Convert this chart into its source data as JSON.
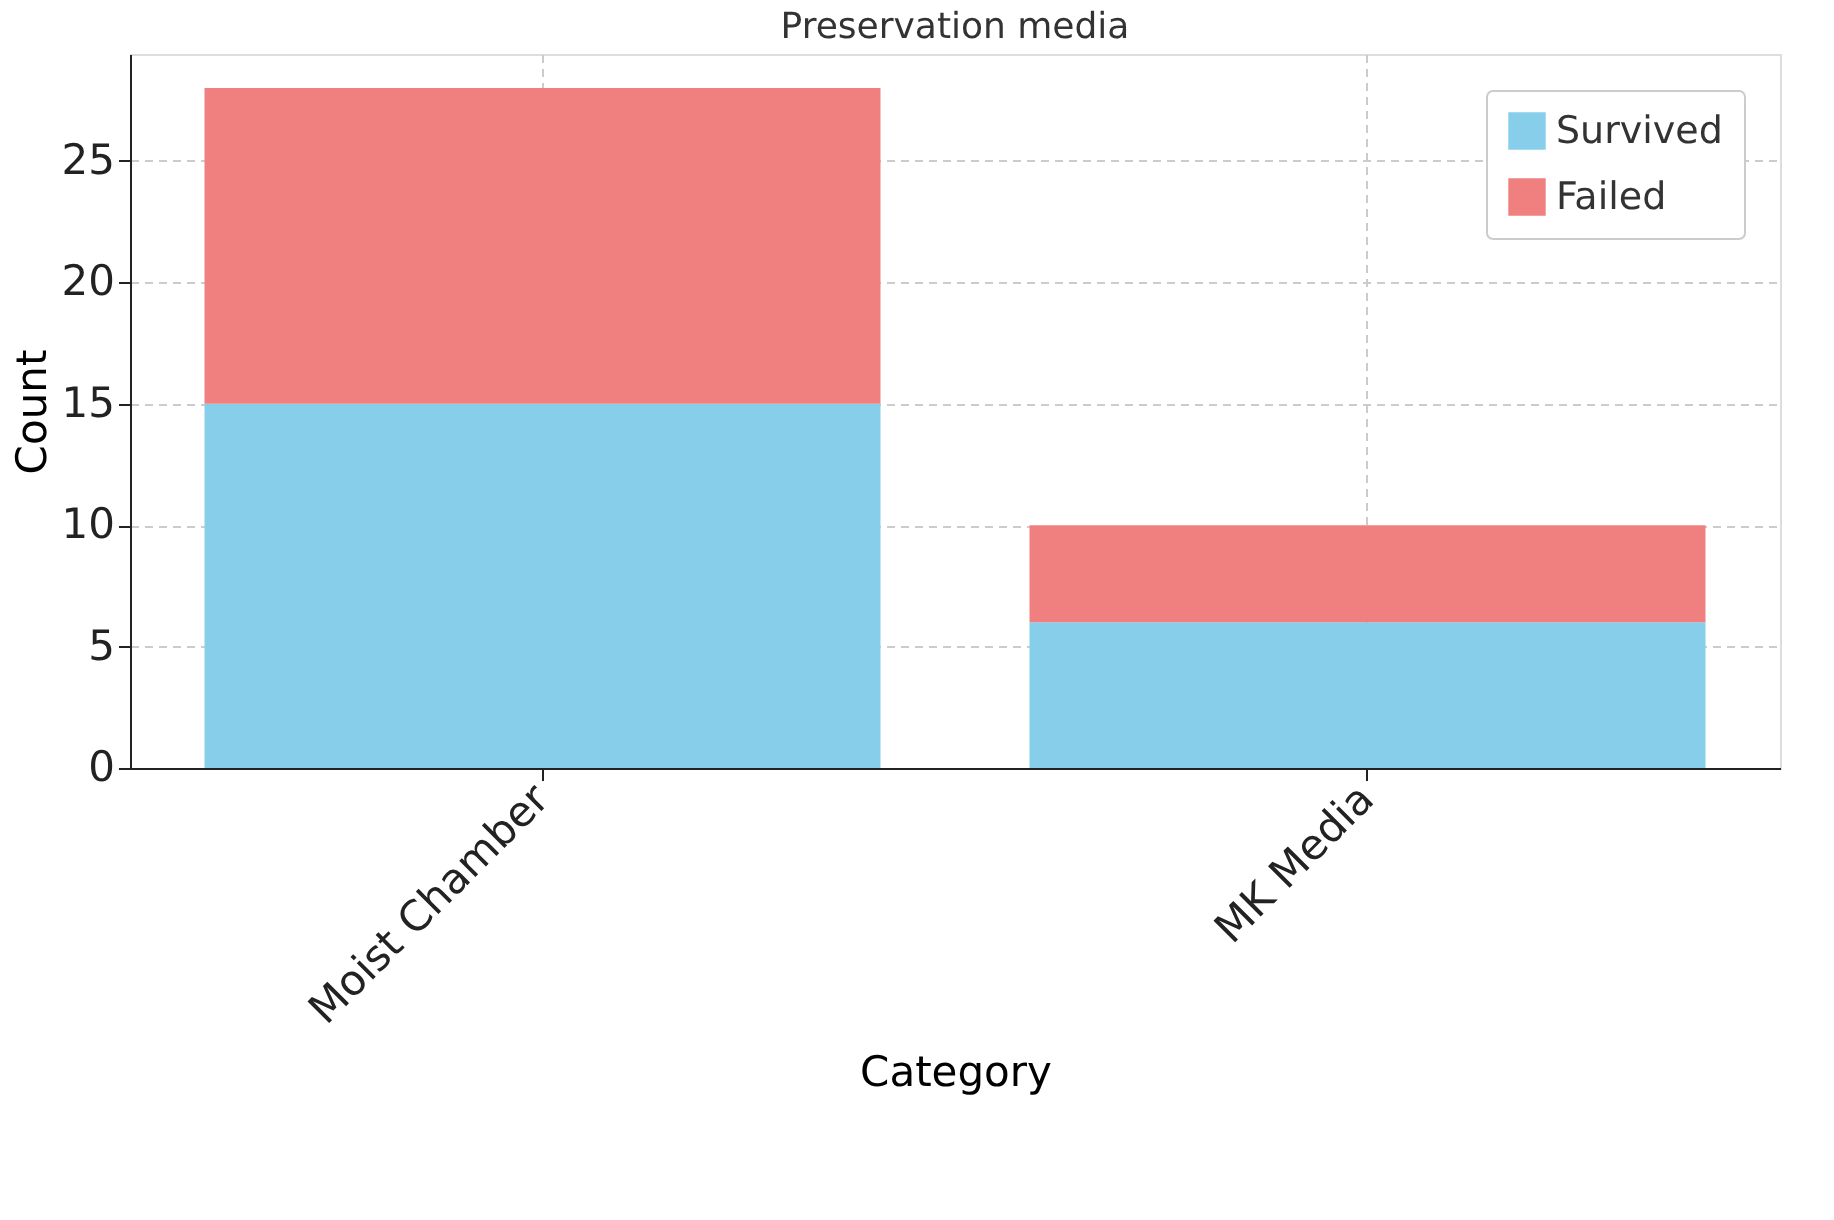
{
  "chart_data": {
    "type": "bar",
    "title": "Preservation media",
    "xlabel": "Category",
    "ylabel": "Count",
    "categories": [
      "Moist Chamber",
      "MK Media"
    ],
    "stacked": true,
    "series": [
      {
        "name": "Survived",
        "color": "#87ceeb",
        "values": [
          15,
          6
        ]
      },
      {
        "name": "Failed",
        "color": "#f08080",
        "values": [
          13,
          4
        ]
      }
    ],
    "ylim": [
      0,
      29.4
    ],
    "yticks": [
      0,
      5,
      10,
      15,
      20,
      25
    ],
    "grid": true,
    "legend": "top right"
  }
}
